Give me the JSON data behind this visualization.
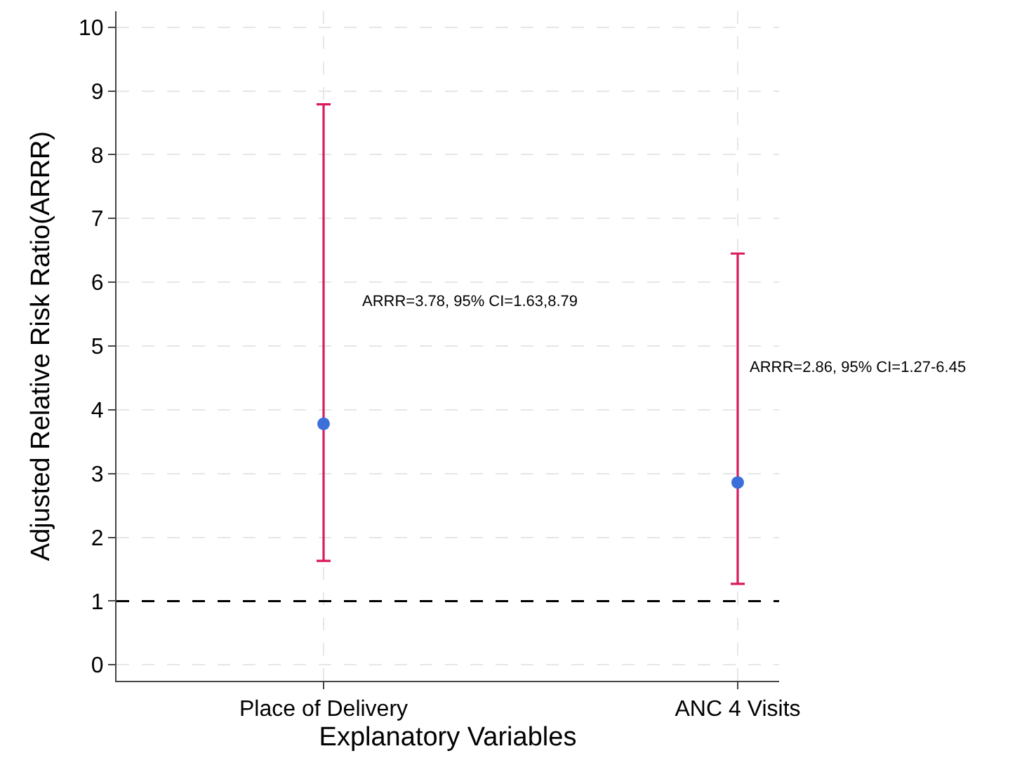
{
  "chart_data": {
    "type": "scatter",
    "xlabel": "Explanatory Variables",
    "ylabel": "Adjusted Relative Risk Ratio(ARRR)",
    "categories": [
      "Place of Delivery",
      "ANC 4 Visits"
    ],
    "series": [
      {
        "color": "#3b6fd9",
        "values": [
          3.78,
          2.86
        ],
        "errors": [
          [
            1.63,
            8.79
          ],
          [
            1.27,
            6.45
          ]
        ]
      }
    ],
    "ylim": [
      -0.25,
      10.25
    ],
    "yticks": [
      0,
      1,
      2,
      3,
      4,
      5,
      6,
      7,
      8,
      9,
      10
    ],
    "grid": true,
    "marker": "circle",
    "ref_lines": [
      {
        "axis": "y",
        "value": 1,
        "color": "#000000",
        "line_style": "dashed"
      }
    ],
    "annotations": [
      {
        "text": "ARRR=3.78, 95% CI=1.63,8.79",
        "x": "Place of Delivery",
        "y": 5.7
      },
      {
        "text": "ARRR=2.86, 95% CI=1.27-6.45",
        "x": "ANC 4 Visits",
        "y": 4.66
      }
    ]
  }
}
